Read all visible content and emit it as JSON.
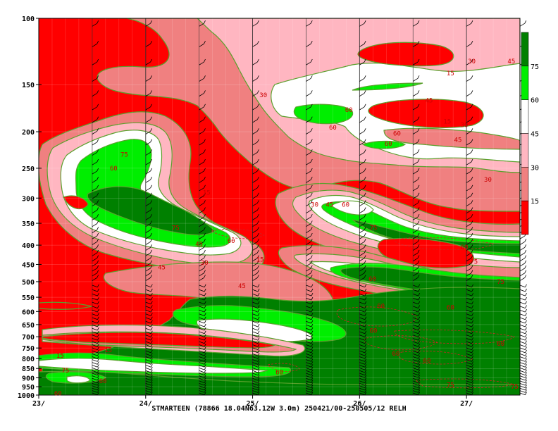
{
  "chart_data": {
    "type": "heatmap",
    "title": "STMARTEEN (78866 18.04N63.12W 3.0m) 250421/00-250505/12 RELH",
    "variable": "RELH",
    "y_axis": {
      "scale": "pressure",
      "inverted": true,
      "range": [
        1000,
        100
      ],
      "ticks": [
        "100",
        "150",
        "200",
        "250",
        "300",
        "350",
        "400",
        "450",
        "500",
        "550",
        "600",
        "650",
        "700",
        "750",
        "800",
        "850",
        "900",
        "950",
        "1000"
      ]
    },
    "x_axis": {
      "range_days": [
        23,
        27.5
      ],
      "ticks": [
        "23/",
        "24/",
        "25/",
        "26/",
        "27/"
      ],
      "tick_values": [
        23,
        24,
        25,
        26,
        27
      ]
    },
    "color_levels": {
      "breaks": [
        15,
        30,
        45,
        60,
        75
      ],
      "labels": [
        "15",
        "30",
        "45",
        "60",
        "75"
      ],
      "colors": [
        "#ff0000",
        "#f08080",
        "#ffb6c1",
        "#ffffff",
        "#00ee00",
        "#008000"
      ]
    },
    "contour_labels": [
      {
        "text": "30",
        "t": 27.05,
        "p": 130
      },
      {
        "text": "45",
        "t": 27.42,
        "p": 130
      },
      {
        "text": "15",
        "t": 26.85,
        "p": 140
      },
      {
        "text": "30",
        "t": 25.1,
        "p": 160
      },
      {
        "text": "45",
        "t": 26.65,
        "p": 165
      },
      {
        "text": "60",
        "t": 25.9,
        "p": 175
      },
      {
        "text": "60",
        "t": 25.75,
        "p": 195
      },
      {
        "text": "15",
        "t": 26.82,
        "p": 188
      },
      {
        "text": "30",
        "t": 26.98,
        "p": 192
      },
      {
        "text": "60",
        "t": 26.35,
        "p": 202
      },
      {
        "text": "45",
        "t": 26.92,
        "p": 210
      },
      {
        "text": "60",
        "t": 26.27,
        "p": 215
      },
      {
        "text": "75",
        "t": 23.8,
        "p": 230
      },
      {
        "text": "60",
        "t": 23.7,
        "p": 250
      },
      {
        "text": "30",
        "t": 27.2,
        "p": 268
      },
      {
        "text": "15",
        "t": 24.57,
        "p": 290
      },
      {
        "text": "30",
        "t": 25.58,
        "p": 312
      },
      {
        "text": "45",
        "t": 25.72,
        "p": 312
      },
      {
        "text": "60",
        "t": 25.87,
        "p": 312
      },
      {
        "text": "75",
        "t": 26.13,
        "p": 360
      },
      {
        "text": "75",
        "t": 24.28,
        "p": 360
      },
      {
        "text": "60",
        "t": 24.8,
        "p": 390
      },
      {
        "text": "45",
        "t": 24.5,
        "p": 397
      },
      {
        "text": "60",
        "t": 26.98,
        "p": 405
      },
      {
        "text": "30",
        "t": 24.55,
        "p": 445
      },
      {
        "text": "45",
        "t": 24.15,
        "p": 458
      },
      {
        "text": "75",
        "t": 27.07,
        "p": 442
      },
      {
        "text": "15",
        "t": 25.07,
        "p": 437
      },
      {
        "text": "60",
        "t": 26.12,
        "p": 492
      },
      {
        "text": "75",
        "t": 27.32,
        "p": 500
      },
      {
        "text": "45",
        "t": 24.9,
        "p": 513
      },
      {
        "text": "60",
        "t": 26.2,
        "p": 580
      },
      {
        "text": "60",
        "t": 26.85,
        "p": 585
      },
      {
        "text": "60",
        "t": 26.13,
        "p": 675
      },
      {
        "text": "60",
        "t": 27.32,
        "p": 730
      },
      {
        "text": "60",
        "t": 26.34,
        "p": 775
      },
      {
        "text": "15",
        "t": 23.2,
        "p": 785
      },
      {
        "text": "15",
        "t": 23.65,
        "p": 760
      },
      {
        "text": "60",
        "t": 26.63,
        "p": 810
      },
      {
        "text": "75",
        "t": 23.25,
        "p": 860
      },
      {
        "text": "60",
        "t": 25.25,
        "p": 870
      },
      {
        "text": "60",
        "t": 23.6,
        "p": 918
      },
      {
        "text": "75",
        "t": 26.85,
        "p": 940
      },
      {
        "text": "75",
        "t": 27.45,
        "p": 950
      },
      {
        "text": "60",
        "t": 23.18,
        "p": 990
      }
    ]
  }
}
